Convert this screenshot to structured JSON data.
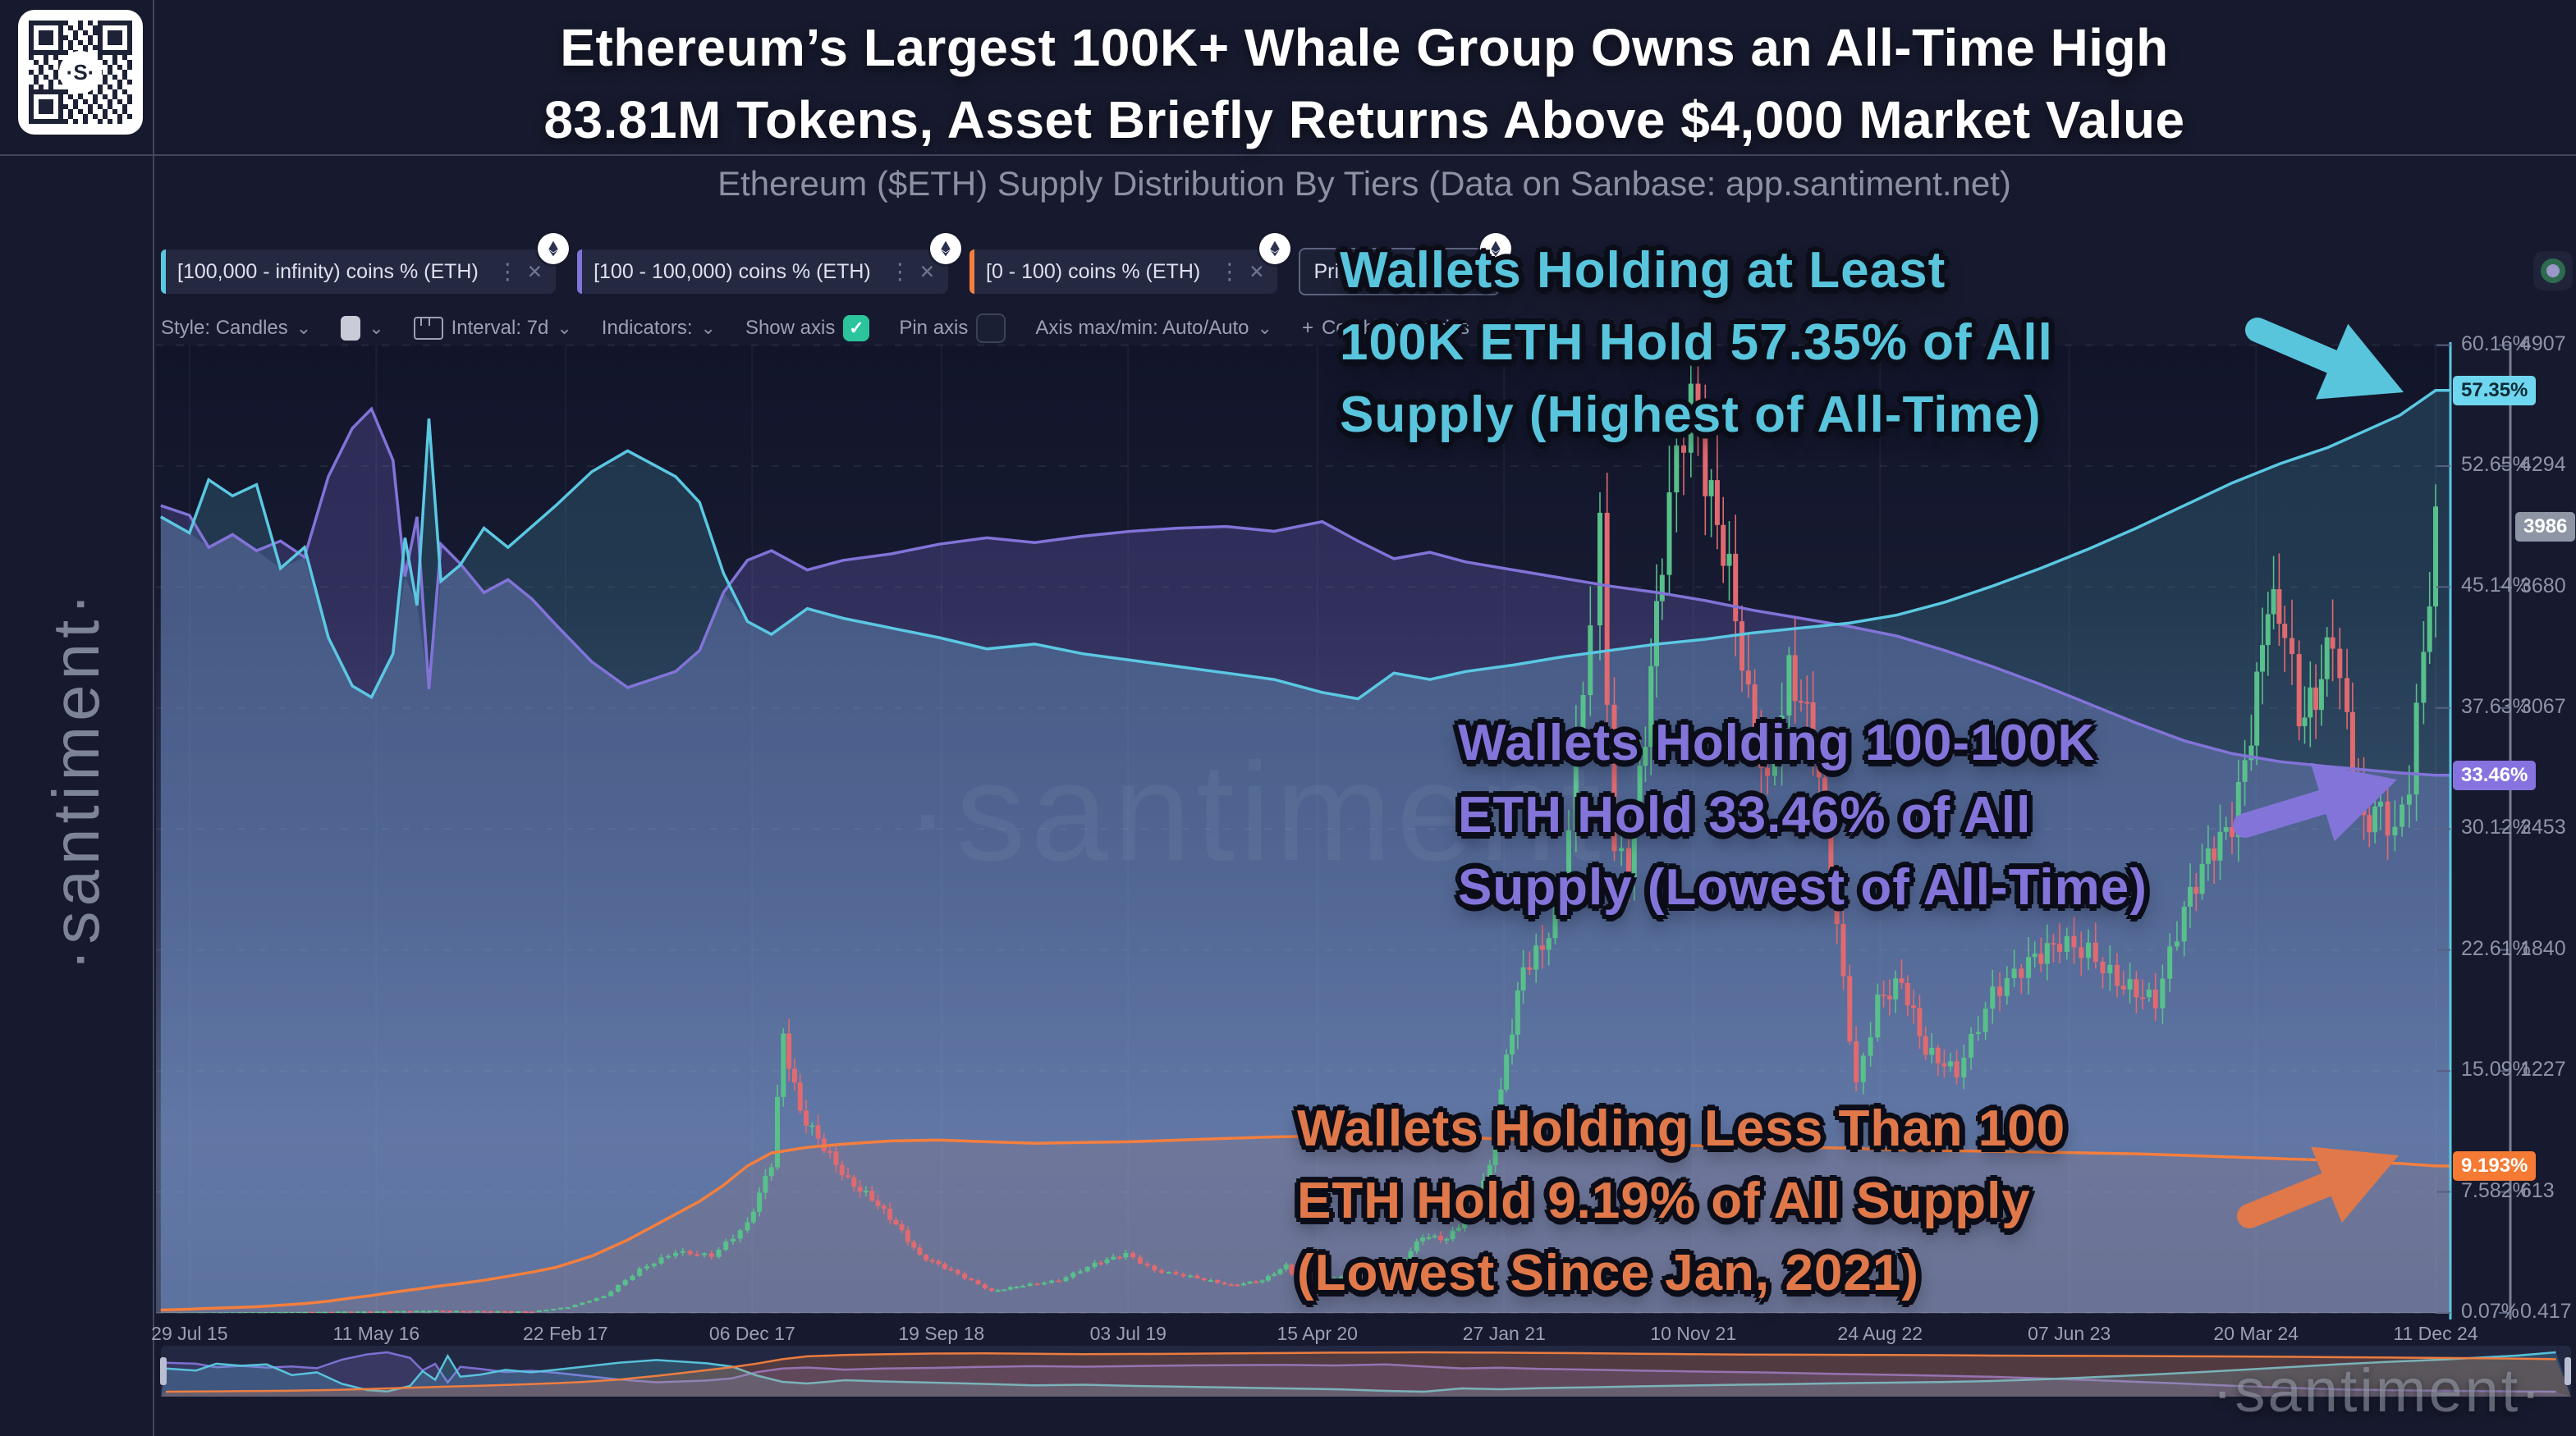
{
  "header": {
    "title_line1": "Ethereum’s Largest 100K+ Whale Group Owns an All-Time High",
    "title_line2": "83.81M Tokens, Asset Briefly Returns Above $4,000 Market Value",
    "subtitle": "Ethereum ($ETH) Supply Distribution By Tiers (Data on Sanbase: app.santiment.net)"
  },
  "watermarks": {
    "sidebar": "·santiment·",
    "center": "·santiment·",
    "bottom_right": "·santiment·"
  },
  "icons": {
    "check": "✓",
    "close": "✕",
    "kebab": "⋮",
    "chevron": "⌄",
    "plus": "+"
  },
  "legend": {
    "items": [
      {
        "label": "[100,000 - infinity) coins % (ETH)",
        "color": "#5bc8e2",
        "badge": "ETH",
        "selected": false
      },
      {
        "label": "[100 - 100,000) coins % (ETH)",
        "color": "#8273d8",
        "badge": "ETH",
        "selected": false
      },
      {
        "label": "[0 - 100) coins % (ETH)",
        "color": "#f57f3e",
        "badge": "ETH",
        "selected": false
      },
      {
        "label": "Price (ETH)",
        "color": null,
        "badge": "ETH",
        "selected": true
      }
    ]
  },
  "toolbar": {
    "style_label": "Style: Candles",
    "interval_label": "Interval: 7d",
    "indicators_label": "Indicators:",
    "show_axis_label": "Show axis",
    "show_axis_checked": true,
    "pin_axis_label": "Pin axis",
    "pin_axis_checked": false,
    "axis_maxmin_label": "Axis max/min: Auto/Auto",
    "combine_label": "Combine metrics"
  },
  "annotations": [
    {
      "color": "#58c5dd",
      "lines": [
        "Wallets Holding at Least",
        "100K ETH Hold 57.35% of All",
        "Supply (Highest of All-Time)"
      ]
    },
    {
      "color": "#8374da",
      "lines": [
        "Wallets Holding 100-100K",
        "ETH Hold 33.46% of All",
        "Supply (Lowest of All-Time)"
      ]
    },
    {
      "color": "#e0784a",
      "lines": [
        "Wallets Holding Less Than 100",
        "ETH Hold 9.19% of All Supply",
        "(Lowest Since Jan, 2021)"
      ]
    }
  ],
  "colors": {
    "background": "#14172a",
    "cyan": "#5bc8e2",
    "purple": "#8273d8",
    "orange": "#f57f3e",
    "candle_up": "#58c08b",
    "candle_down": "#e06a70",
    "axis_text": "#8e94a8",
    "green_check": "#2bc49c",
    "badge_cyan_bg": "#6fd6ef",
    "badge_cyan_text": "#0d2b36",
    "badge_purple_bg": "#8673e0",
    "badge_orange_bg": "#f57a33",
    "badge_price_bg": "#8e95a4",
    "badge_light_text": "#ffffff"
  },
  "chart_data": {
    "type": "line",
    "title": "Ethereum ($ETH) Supply Distribution By Tiers",
    "legend_position": "top-left",
    "grid": true,
    "x_axis": {
      "ticks": [
        {
          "t": 2015.57,
          "label": "29 Jul 15"
        },
        {
          "t": 2016.35,
          "label": "11 May 16"
        },
        {
          "t": 2017.14,
          "label": "22 Feb 17"
        },
        {
          "t": 2017.92,
          "label": "06 Dec 17"
        },
        {
          "t": 2018.71,
          "label": "19 Sep 18"
        },
        {
          "t": 2019.49,
          "label": "03 Jul 19"
        },
        {
          "t": 2020.28,
          "label": "15 Apr 20"
        },
        {
          "t": 2021.06,
          "label": "27 Jan 21"
        },
        {
          "t": 2021.85,
          "label": "10 Nov 21"
        },
        {
          "t": 2022.63,
          "label": "24 Aug 22"
        },
        {
          "t": 2023.42,
          "label": "07 Jun 23"
        },
        {
          "t": 2024.2,
          "label": "20 Mar 24"
        },
        {
          "t": 2024.95,
          "label": "11 Dec 24"
        }
      ]
    },
    "y_axis_percent": {
      "min": 0.07,
      "max": 60.16,
      "tick_values": [
        60.16,
        52.65,
        45.14,
        37.63,
        30.12,
        22.61,
        15.09,
        7.582,
        0.07
      ],
      "tick_labels": [
        "60.16%",
        "52.65%",
        "45.14%",
        "37.63%",
        "30.12%",
        "22.61%",
        "15.09%",
        "7.582%",
        "0.07%"
      ]
    },
    "y_axis_price": {
      "min": 0.417,
      "max": 4907,
      "tick_values": [
        4907,
        4294,
        3680,
        3067,
        2453,
        1840,
        1227,
        613,
        0.417
      ],
      "tick_labels": [
        "4907",
        "4294",
        "3680",
        "3067",
        "2453",
        "1840",
        "1227",
        "613",
        "0.417"
      ]
    },
    "t": [
      2015.45,
      2015.57,
      2015.65,
      2015.75,
      2015.85,
      2015.95,
      2016.05,
      2016.15,
      2016.25,
      2016.33,
      2016.42,
      2016.47,
      2016.52,
      2016.57,
      2016.62,
      2016.7,
      2016.8,
      2016.9,
      2017.0,
      2017.1,
      2017.25,
      2017.4,
      2017.5,
      2017.6,
      2017.7,
      2017.8,
      2017.9,
      2018.0,
      2018.15,
      2018.3,
      2018.5,
      2018.7,
      2018.9,
      2019.1,
      2019.3,
      2019.5,
      2019.7,
      2019.9,
      2020.1,
      2020.3,
      2020.45,
      2020.6,
      2020.75,
      2020.9,
      2021.1,
      2021.3,
      2021.5,
      2021.7,
      2021.9,
      2022.1,
      2022.3,
      2022.5,
      2022.7,
      2022.9,
      2023.1,
      2023.3,
      2023.5,
      2023.7,
      2023.9,
      2024.1,
      2024.3,
      2024.5,
      2024.65,
      2024.8,
      2024.95
    ],
    "series": [
      {
        "name": "[100,000 - infinity) coins % (ETH)",
        "axis": "percent",
        "color": "#5bc8e2",
        "current": 57.35,
        "current_label": "57.35%",
        "values": [
          49.5,
          48.5,
          51.8,
          50.8,
          51.5,
          46.3,
          47.6,
          42.0,
          39.0,
          38.3,
          41.0,
          48.2,
          44.0,
          55.6,
          45.5,
          46.5,
          48.8,
          47.6,
          48.9,
          50.2,
          52.3,
          53.6,
          52.8,
          52.0,
          50.4,
          46.0,
          43.0,
          42.2,
          43.8,
          43.2,
          42.6,
          42.0,
          41.3,
          41.6,
          41.0,
          40.6,
          40.2,
          39.8,
          39.4,
          38.6,
          38.2,
          39.8,
          39.4,
          39.9,
          40.3,
          40.8,
          41.2,
          41.6,
          41.9,
          42.3,
          42.6,
          42.9,
          43.4,
          44.2,
          45.2,
          46.3,
          47.5,
          48.8,
          50.2,
          51.6,
          52.8,
          53.8,
          54.8,
          55.8,
          57.35
        ]
      },
      {
        "name": "[100 - 100,000) coins % (ETH)",
        "axis": "percent",
        "color": "#8273d8",
        "current": 33.46,
        "current_label": "33.46%",
        "values": [
          50.2,
          49.6,
          47.6,
          48.4,
          47.4,
          48.0,
          47.0,
          52.0,
          55.0,
          56.2,
          53.0,
          45.8,
          49.5,
          38.8,
          47.8,
          46.6,
          44.8,
          45.6,
          44.4,
          42.8,
          40.5,
          38.9,
          39.4,
          39.9,
          41.2,
          44.8,
          46.8,
          47.4,
          46.2,
          46.8,
          47.2,
          47.8,
          48.2,
          47.9,
          48.3,
          48.6,
          48.8,
          48.9,
          48.6,
          49.2,
          48.0,
          46.9,
          47.3,
          46.7,
          46.2,
          45.7,
          45.2,
          44.8,
          44.3,
          43.7,
          43.2,
          42.7,
          42.1,
          41.2,
          40.2,
          39.1,
          37.9,
          36.7,
          35.6,
          34.8,
          34.3,
          34.0,
          33.8,
          33.6,
          33.46
        ]
      },
      {
        "name": "[0 - 100) coins % (ETH)",
        "axis": "percent",
        "color": "#f57f3e",
        "current": 9.193,
        "current_label": "9.193%",
        "values": [
          0.25,
          0.3,
          0.35,
          0.4,
          0.45,
          0.55,
          0.65,
          0.8,
          1.0,
          1.15,
          1.35,
          1.45,
          1.55,
          1.65,
          1.75,
          1.9,
          2.1,
          2.35,
          2.6,
          2.9,
          3.6,
          4.6,
          5.4,
          6.2,
          7.0,
          8.0,
          9.2,
          10.0,
          10.35,
          10.55,
          10.75,
          10.8,
          10.7,
          10.6,
          10.65,
          10.7,
          10.8,
          10.9,
          11.0,
          11.05,
          11.1,
          11.05,
          11.0,
          10.95,
          10.85,
          10.7,
          10.6,
          10.5,
          10.45,
          10.4,
          10.35,
          10.3,
          10.2,
          10.15,
          10.1,
          10.05,
          10.0,
          9.95,
          9.85,
          9.75,
          9.65,
          9.55,
          9.45,
          9.35,
          9.193
        ]
      }
    ],
    "price_series": {
      "name": "Price (ETH)",
      "axis": "price",
      "style": "candles",
      "current": 3986,
      "current_label": "3986",
      "points": [
        [
          2015.45,
          1
        ],
        [
          2016.3,
          8
        ],
        [
          2016.6,
          12
        ],
        [
          2017.0,
          8
        ],
        [
          2017.15,
          30
        ],
        [
          2017.3,
          85
        ],
        [
          2017.45,
          220
        ],
        [
          2017.6,
          310
        ],
        [
          2017.75,
          290
        ],
        [
          2017.9,
          450
        ],
        [
          2018.0,
          760
        ],
        [
          2018.05,
          1400
        ],
        [
          2018.12,
          1020
        ],
        [
          2018.22,
          840
        ],
        [
          2018.32,
          670
        ],
        [
          2018.42,
          580
        ],
        [
          2018.52,
          450
        ],
        [
          2018.62,
          290
        ],
        [
          2018.75,
          215
        ],
        [
          2018.92,
          110
        ],
        [
          2019.05,
          140
        ],
        [
          2019.2,
          165
        ],
        [
          2019.35,
          250
        ],
        [
          2019.48,
          300
        ],
        [
          2019.6,
          215
        ],
        [
          2019.75,
          185
        ],
        [
          2019.92,
          140
        ],
        [
          2020.05,
          165
        ],
        [
          2020.15,
          240
        ],
        [
          2020.22,
          125
        ],
        [
          2020.35,
          175
        ],
        [
          2020.5,
          215
        ],
        [
          2020.62,
          245
        ],
        [
          2020.72,
          390
        ],
        [
          2020.82,
          375
        ],
        [
          2020.92,
          510
        ],
        [
          2021.0,
          740
        ],
        [
          2021.07,
          1300
        ],
        [
          2021.14,
          1750
        ],
        [
          2021.22,
          1850
        ],
        [
          2021.3,
          2120
        ],
        [
          2021.36,
          2850
        ],
        [
          2021.42,
          3520
        ],
        [
          2021.46,
          3950
        ],
        [
          2021.52,
          2350
        ],
        [
          2021.58,
          2250
        ],
        [
          2021.65,
          2950
        ],
        [
          2021.72,
          3850
        ],
        [
          2021.78,
          4350
        ],
        [
          2021.84,
          4620
        ],
        [
          2021.9,
          4250
        ],
        [
          2022.0,
          3750
        ],
        [
          2022.08,
          3100
        ],
        [
          2022.16,
          2650
        ],
        [
          2022.25,
          3250
        ],
        [
          2022.35,
          2950
        ],
        [
          2022.45,
          1950
        ],
        [
          2022.53,
          1150
        ],
        [
          2022.62,
          1580
        ],
        [
          2022.72,
          1680
        ],
        [
          2022.82,
          1330
        ],
        [
          2022.95,
          1220
        ],
        [
          2023.1,
          1620
        ],
        [
          2023.25,
          1780
        ],
        [
          2023.38,
          1880
        ],
        [
          2023.5,
          1830
        ],
        [
          2023.62,
          1680
        ],
        [
          2023.78,
          1580
        ],
        [
          2023.9,
          2050
        ],
        [
          2024.0,
          2320
        ],
        [
          2024.1,
          2480
        ],
        [
          2024.18,
          2950
        ],
        [
          2024.25,
          3620
        ],
        [
          2024.32,
          3480
        ],
        [
          2024.38,
          3020
        ],
        [
          2024.45,
          3120
        ],
        [
          2024.52,
          3450
        ],
        [
          2024.58,
          2980
        ],
        [
          2024.65,
          2480
        ],
        [
          2024.72,
          2560
        ],
        [
          2024.78,
          2420
        ],
        [
          2024.84,
          2700
        ],
        [
          2024.9,
          3350
        ],
        [
          2024.95,
          3986
        ]
      ]
    },
    "navigator": {
      "present": true,
      "series_normalized_independently": true
    }
  }
}
